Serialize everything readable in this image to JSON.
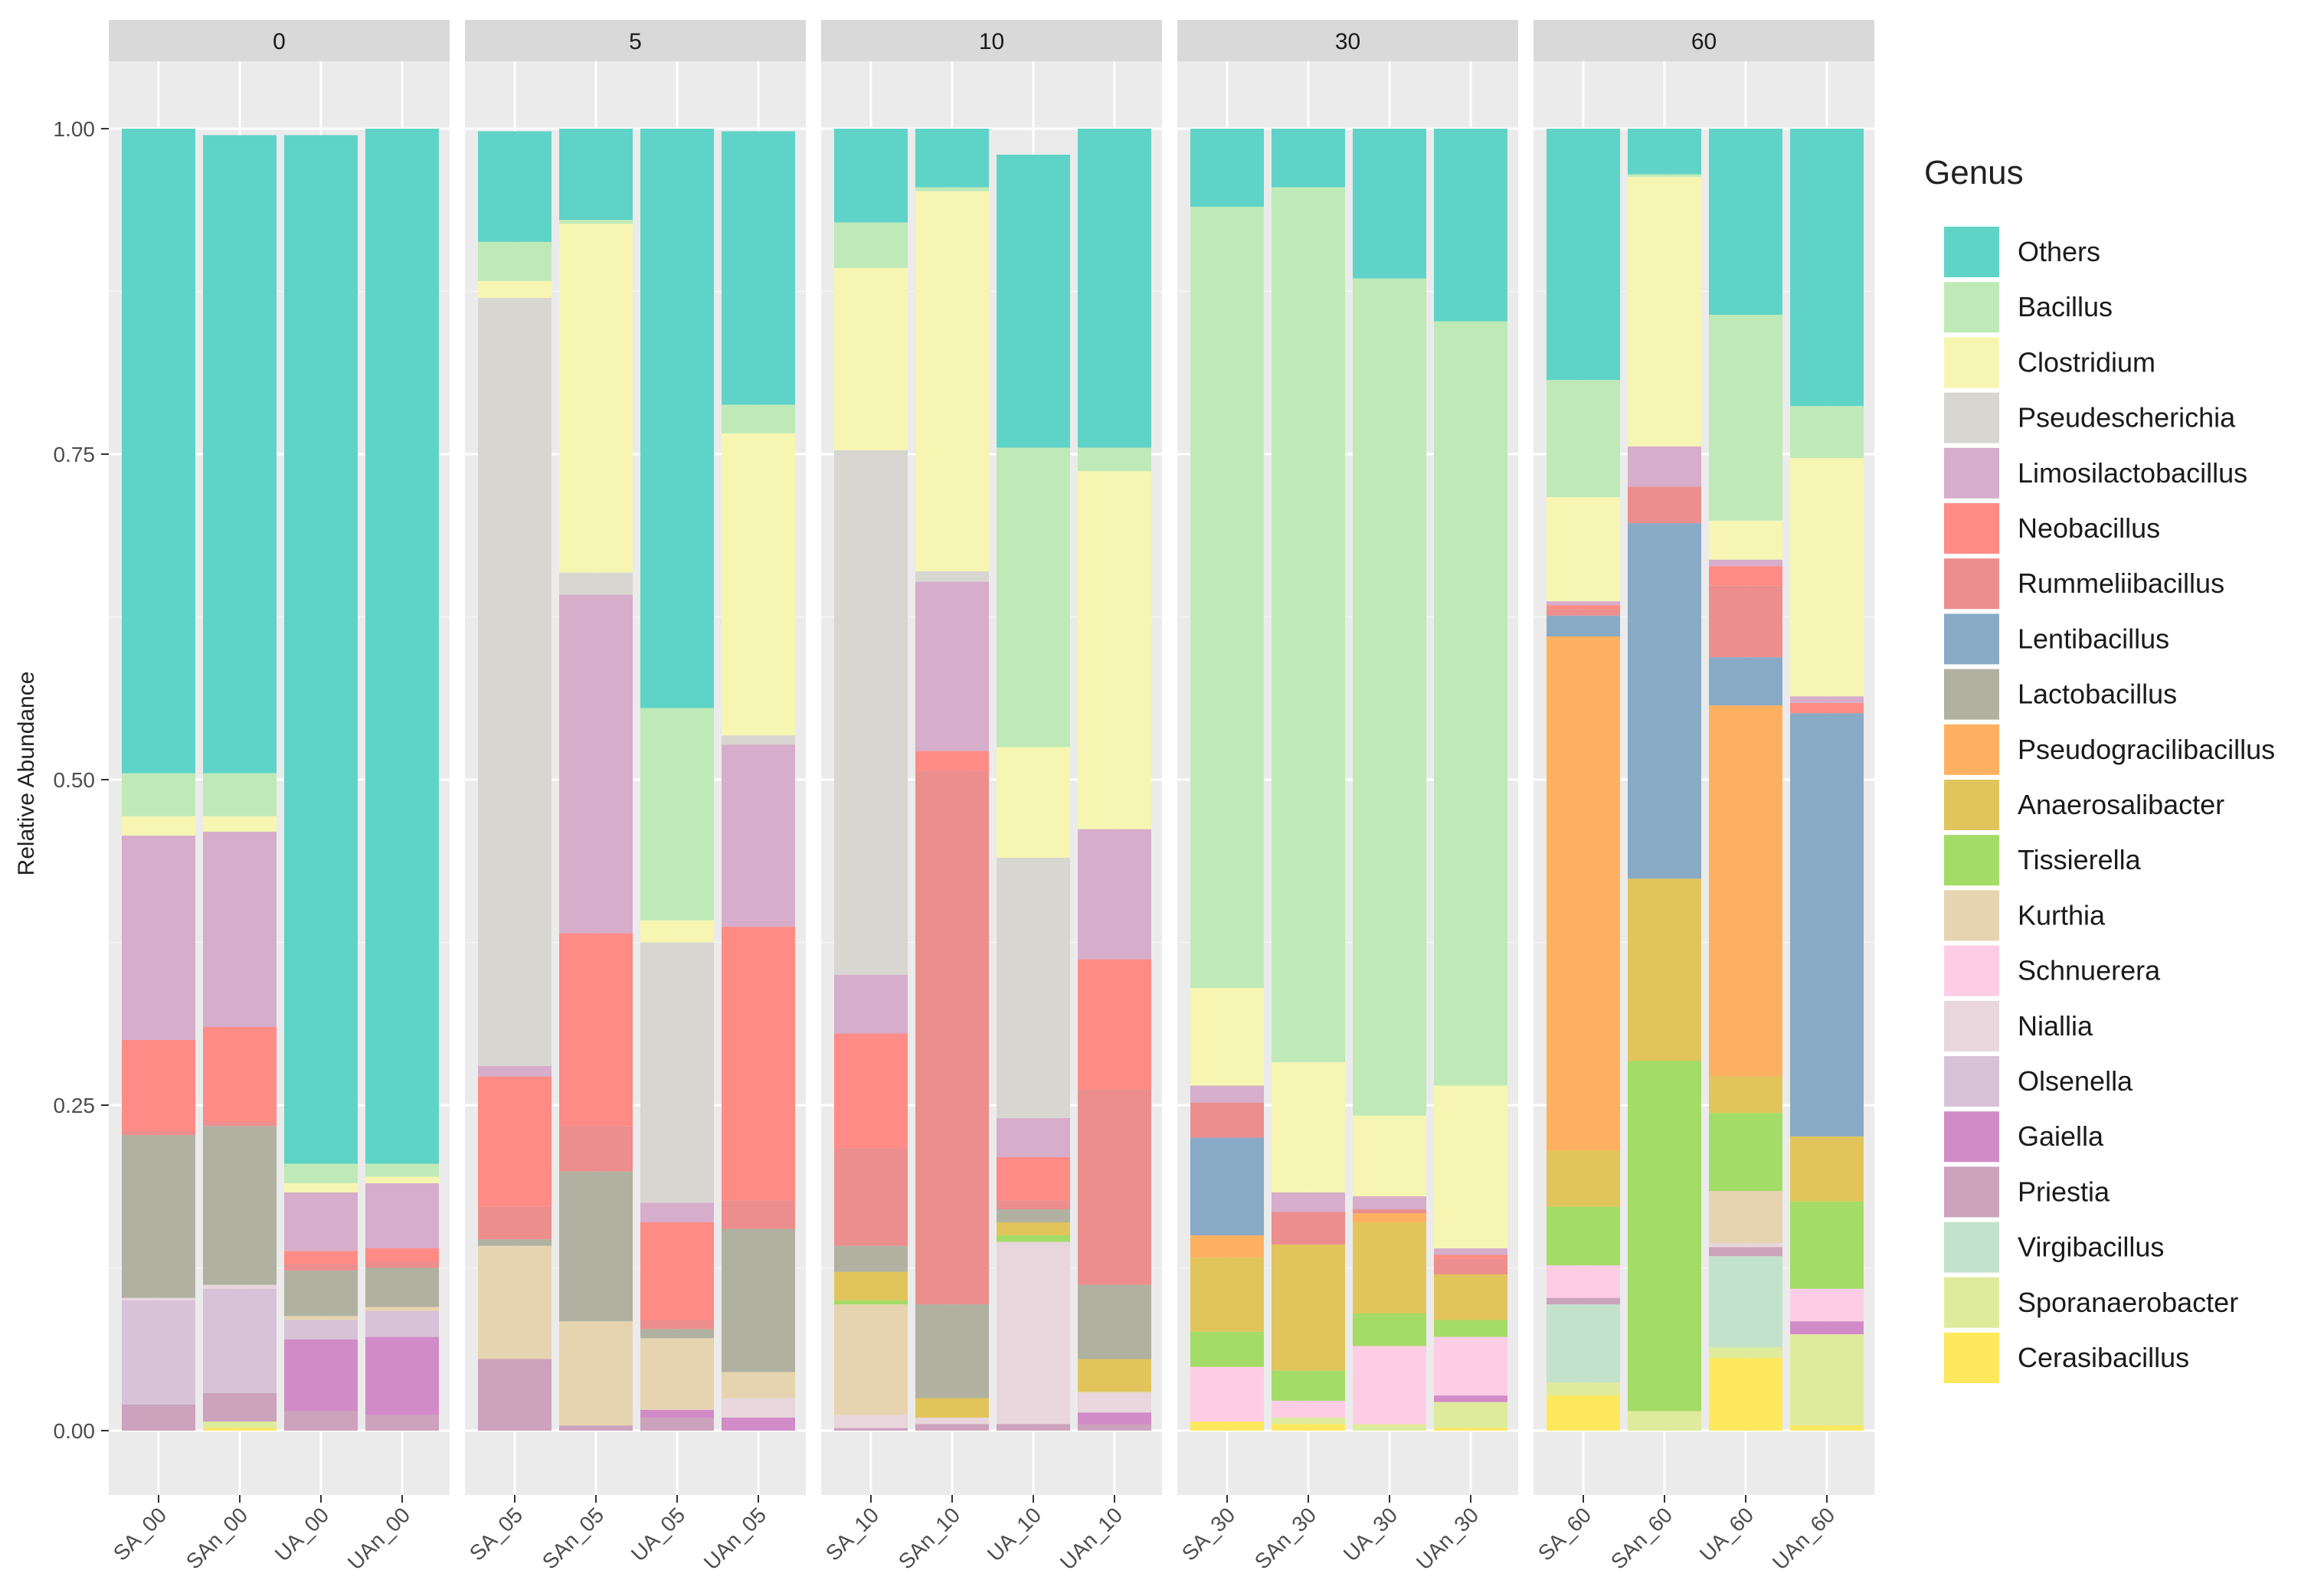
{
  "chart_data": {
    "type": "bar",
    "stacked": true,
    "ylabel": "Relative Abundance",
    "xlabel": "",
    "ylim": [
      0,
      1
    ],
    "yticks": [
      0,
      0.25,
      0.5,
      0.75,
      1.0
    ],
    "ytick_labels": [
      "0.00",
      "0.25",
      "0.50",
      "0.75",
      "1.00"
    ],
    "legend_title": "Genus",
    "legend_position": "right",
    "genera": [
      {
        "name": "Others",
        "color": "#5fd3c7"
      },
      {
        "name": "Bacillus",
        "color": "#bfeab8"
      },
      {
        "name": "Clostridium",
        "color": "#f6f6b2"
      },
      {
        "name": "Pseudescherichia",
        "color": "#d8d6d1"
      },
      {
        "name": "Limosilactobacillus",
        "color": "#d6adca"
      },
      {
        "name": "Neobacillus",
        "color": "#fe8b85"
      },
      {
        "name": "Rummeliibacillus",
        "color": "#ec8e8e"
      },
      {
        "name": "Lentibacillus",
        "color": "#89aac6"
      },
      {
        "name": "Lactobacillus",
        "color": "#b0b1a1"
      },
      {
        "name": "Pseudogracilibacillus",
        "color": "#fdb160"
      },
      {
        "name": "Anaerosalibacter",
        "color": "#e1c55c"
      },
      {
        "name": "Tissierella",
        "color": "#a3dc66"
      },
      {
        "name": "Kurthia",
        "color": "#e6d4b0"
      },
      {
        "name": "Schnuerera",
        "color": "#fdcde5"
      },
      {
        "name": "Niallia",
        "color": "#e8d6dc"
      },
      {
        "name": "Olsenella",
        "color": "#d8c2d8"
      },
      {
        "name": "Gaiella",
        "color": "#d18bc7"
      },
      {
        "name": "Priestia",
        "color": "#cca2bd"
      },
      {
        "name": "Virgibacillus",
        "color": "#c3e2cb"
      },
      {
        "name": "Sporanaerobacter",
        "color": "#dfeb9c"
      },
      {
        "name": "Cerasibacillus",
        "color": "#fde85e"
      }
    ],
    "facets": [
      {
        "label": "0",
        "samples": [
          {
            "name": "SA_00",
            "values": [
              0.495,
              0.033,
              0.015,
              0,
              0.157,
              0.07,
              0.003,
              0,
              0.125,
              0,
              0,
              0,
              0,
              0,
              0.002,
              0.08,
              0,
              0.02,
              0,
              0,
              0
            ]
          },
          {
            "name": "SAn_00",
            "values": [
              0.49,
              0.033,
              0.012,
              0,
              0.15,
              0.073,
              0.003,
              0,
              0.122,
              0,
              0,
              0,
              0,
              0,
              0.003,
              0.08,
              0,
              0.022,
              0,
              0.005,
              0.002
            ]
          },
          {
            "name": "UA_00",
            "values": [
              0.79,
              0.015,
              0.007,
              0,
              0.045,
              0.01,
              0.005,
              0,
              0.035,
              0,
              0,
              0,
              0.003,
              0,
              0,
              0.015,
              0.055,
              0.015,
              0,
              0,
              0
            ]
          },
          {
            "name": "UAn_00",
            "values": [
              0.795,
              0.01,
              0.005,
              0,
              0.05,
              0.01,
              0.005,
              0,
              0.03,
              0,
              0,
              0,
              0.003,
              0,
              0,
              0.02,
              0.06,
              0.012,
              0,
              0,
              0
            ]
          }
        ]
      },
      {
        "label": "5",
        "samples": [
          {
            "name": "SA_05",
            "values": [
              0.085,
              0.03,
              0.013,
              0.59,
              0.008,
              0.1,
              0.025,
              0,
              0.005,
              0,
              0,
              0,
              0.087,
              0,
              0,
              0,
              0,
              0.055,
              0,
              0,
              0
            ]
          },
          {
            "name": "SAn_05",
            "values": [
              0.07,
              0.003,
              0.268,
              0.017,
              0.26,
              0.148,
              0.035,
              0,
              0.115,
              0,
              0,
              0,
              0.08,
              0,
              0,
              0,
              0,
              0.004,
              0,
              0,
              0
            ]
          },
          {
            "name": "UA_05",
            "values": [
              0.445,
              0.163,
              0.017,
              0.2,
              0.015,
              0.075,
              0.007,
              0,
              0.007,
              0,
              0,
              0,
              0.055,
              0,
              0,
              0,
              0.006,
              0.01,
              0,
              0,
              0
            ]
          },
          {
            "name": "UAn_05",
            "values": [
              0.21,
              0.022,
              0.232,
              0.007,
              0.14,
              0.21,
              0.022,
              0,
              0.11,
              0,
              0,
              0,
              0.02,
              0,
              0.015,
              0,
              0.01,
              0,
              0,
              0,
              0
            ]
          }
        ]
      },
      {
        "label": "10",
        "samples": [
          {
            "name": "SA_10",
            "values": [
              0.072,
              0.035,
              0.14,
              0.403,
              0.045,
              0.088,
              0.075,
              0,
              0.02,
              0,
              0.022,
              0.003,
              0.085,
              0,
              0.01,
              0,
              0,
              0.002,
              0,
              0,
              0
            ]
          },
          {
            "name": "SAn_10",
            "values": [
              0.045,
              0.003,
              0.292,
              0.008,
              0.13,
              0.015,
              0.41,
              0,
              0.072,
              0,
              0.015,
              0,
              0,
              0,
              0.005,
              0,
              0,
              0.005,
              0,
              0,
              0
            ]
          },
          {
            "name": "UA_10",
            "values": [
              0.225,
              0.23,
              0.085,
              0.2,
              0.03,
              0.033,
              0.007,
              0,
              0.01,
              0,
              0.01,
              0.005,
              0,
              0,
              0.14,
              0,
              0,
              0.005,
              0,
              0,
              0
            ]
          },
          {
            "name": "UAn_10",
            "values": [
              0.245,
              0.018,
              0.275,
              0,
              0.1,
              0.1,
              0.15,
              0,
              0.057,
              0,
              0.025,
              0,
              0.001,
              0,
              0.015,
              0,
              0.009,
              0.005,
              0,
              0,
              0
            ]
          }
        ]
      },
      {
        "label": "30",
        "samples": [
          {
            "name": "SA_30",
            "values": [
              0.06,
              0.6,
              0.075,
              0,
              0.013,
              0,
              0.027,
              0.075,
              0,
              0.017,
              0.057,
              0.027,
              0,
              0.042,
              0,
              0,
              0,
              0,
              0,
              0,
              0.007
            ]
          },
          {
            "name": "SAn_30",
            "values": [
              0.045,
              0.672,
              0.1,
              0,
              0.015,
              0,
              0.025,
              0,
              0,
              0,
              0.097,
              0.023,
              0,
              0.013,
              0,
              0,
              0,
              0,
              0,
              0.005,
              0.005
            ]
          },
          {
            "name": "UA_30",
            "values": [
              0.115,
              0.643,
              0.062,
              0,
              0.01,
              0,
              0.003,
              0,
              0,
              0.007,
              0.07,
              0.025,
              0,
              0.06,
              0,
              0,
              0,
              0,
              0,
              0.005,
              0
            ]
          },
          {
            "name": "UAn_30",
            "values": [
              0.148,
              0.587,
              0.125,
              0,
              0.005,
              0.003,
              0.012,
              0,
              0,
              0,
              0.035,
              0.013,
              0,
              0.045,
              0,
              0,
              0.005,
              0,
              0,
              0.02,
              0.002
            ]
          }
        ]
      },
      {
        "label": "60",
        "samples": [
          {
            "name": "SA_60",
            "values": [
              0.193,
              0.09,
              0.08,
              0,
              0.003,
              0.003,
              0.005,
              0.016,
              0,
              0.395,
              0.043,
              0.045,
              0,
              0.025,
              0,
              0,
              0,
              0.005,
              0.06,
              0.01,
              0.027
            ]
          },
          {
            "name": "SAn_60",
            "values": [
              0.035,
              0.002,
              0.207,
              0,
              0.031,
              0,
              0.028,
              0.273,
              0,
              0,
              0.14,
              0.269,
              0,
              0,
              0,
              0,
              0,
              0,
              0,
              0.015,
              0
            ]
          },
          {
            "name": "UA_60",
            "values": [
              0.143,
              0.158,
              0.03,
              0,
              0.005,
              0.015,
              0.055,
              0.037,
              0,
              0.285,
              0.028,
              0.06,
              0.04,
              0,
              0.003,
              0,
              0,
              0.007,
              0.07,
              0.008,
              0.056
            ]
          },
          {
            "name": "UAn_60",
            "values": [
              0.213,
              0.04,
              0.183,
              0,
              0.005,
              0.008,
              0,
              0.325,
              0,
              0,
              0.05,
              0.067,
              0,
              0.025,
              0,
              0,
              0.01,
              0,
              0,
              0.07,
              0.004
            ]
          }
        ]
      }
    ]
  }
}
